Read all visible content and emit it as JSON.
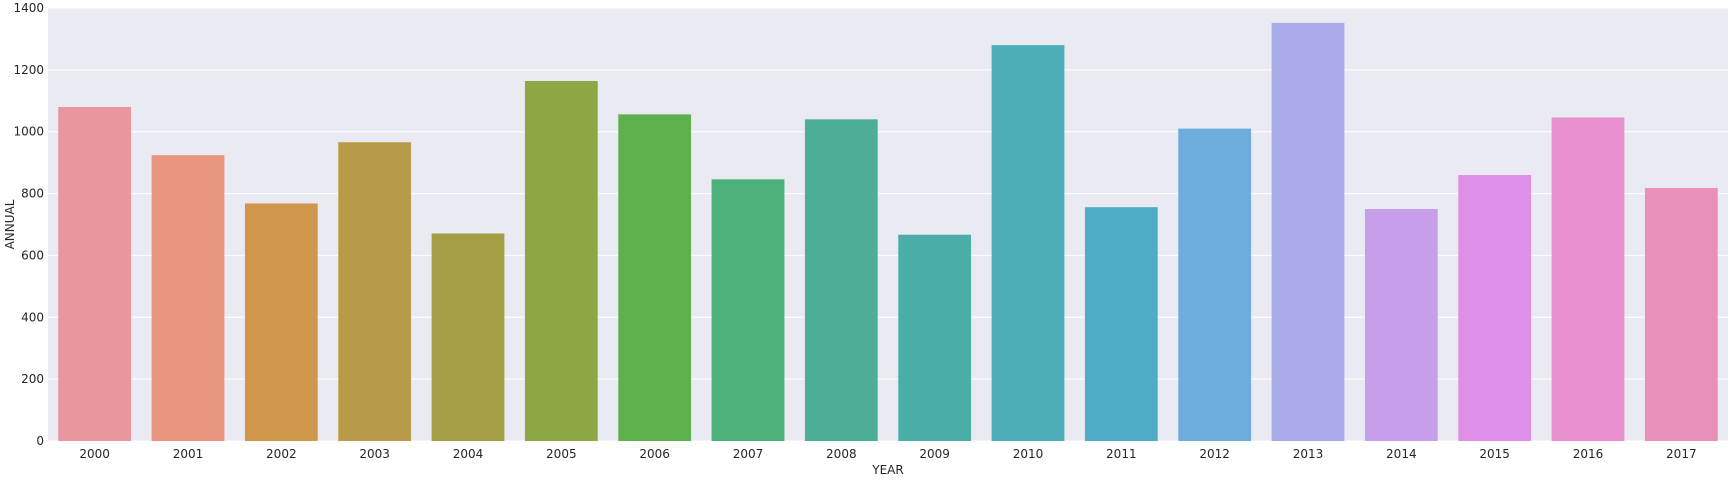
{
  "chart_data": {
    "type": "bar",
    "title": "",
    "xlabel": "YEAR",
    "ylabel": "ANNUAL",
    "categories": [
      "2000",
      "2001",
      "2002",
      "2003",
      "2004",
      "2005",
      "2006",
      "2007",
      "2008",
      "2009",
      "2010",
      "2011",
      "2012",
      "2013",
      "2014",
      "2015",
      "2016",
      "2017"
    ],
    "values": [
      1080,
      924,
      768,
      966,
      671,
      1164,
      1056,
      846,
      1040,
      667,
      1280,
      756,
      1010,
      1352,
      750,
      860,
      1046,
      818
    ],
    "ylim": [
      0,
      1400
    ],
    "yticks": [
      0,
      200,
      400,
      600,
      800,
      1000,
      1200,
      1400
    ],
    "grid": true,
    "colors": [
      "#ea96a0",
      "#e8957e",
      "#d0964c",
      "#b89b48",
      "#a29f45",
      "#8ea745",
      "#5eb04d",
      "#4bb07b",
      "#4bae95",
      "#4bada8",
      "#4caeb6",
      "#4eacc7",
      "#6cadde",
      "#a8abe8",
      "#c69eea",
      "#de8fe8",
      "#e88fd0",
      "#e990b8"
    ],
    "background": "#eaeaf2",
    "grid_color": "#ffffff"
  }
}
